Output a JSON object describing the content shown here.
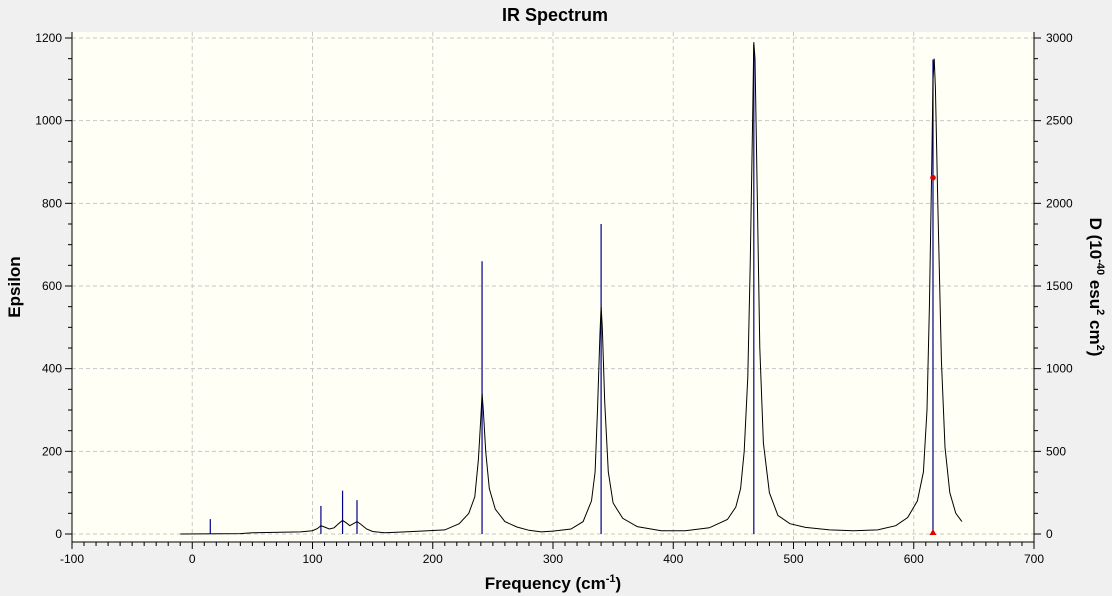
{
  "chart_data": {
    "type": "line",
    "title": "IR Spectrum",
    "xlabel": "Frequency (cm",
    "xlabel_sup": "-1",
    "xlabel_end": ")",
    "ylabel_left": "Epsilon",
    "ylabel_right_parts": [
      "D (10",
      "-40",
      " esu",
      "2",
      " cm",
      "2",
      ")"
    ],
    "xlim": [
      -100,
      700
    ],
    "ylim_left": [
      0,
      1200
    ],
    "ylim_right": [
      0,
      3000
    ],
    "x_ticks": [
      -100,
      0,
      100,
      200,
      300,
      400,
      500,
      600,
      700
    ],
    "y_ticks_left": [
      0,
      200,
      400,
      600,
      800,
      1000,
      1200
    ],
    "y_ticks_right": [
      0,
      500,
      1000,
      1500,
      2000,
      2500,
      3000
    ],
    "grid": true,
    "legend": "none",
    "colors": {
      "plot_bg": "#fffff5",
      "frame_bg": "#f0f0f0",
      "grid": "#c8c8c8",
      "curve": "#000000",
      "stick": "#00008b",
      "marker": "#e00000"
    },
    "sticks": [
      {
        "x": 15,
        "d": 90
      },
      {
        "x": 107,
        "d": 170
      },
      {
        "x": 125,
        "d": 262
      },
      {
        "x": 137,
        "d": 205
      },
      {
        "x": 241,
        "d": 1650
      },
      {
        "x": 340,
        "d": 1875
      },
      {
        "x": 467,
        "d": 2960
      },
      {
        "x": 616,
        "d": 2870
      }
    ],
    "curve": [
      [
        -10,
        0
      ],
      [
        40,
        1
      ],
      [
        50,
        3
      ],
      [
        90,
        5
      ],
      [
        100,
        8
      ],
      [
        104,
        13
      ],
      [
        107,
        20
      ],
      [
        110,
        17
      ],
      [
        114,
        12
      ],
      [
        118,
        15
      ],
      [
        122,
        26
      ],
      [
        125,
        33
      ],
      [
        128,
        27
      ],
      [
        131,
        20
      ],
      [
        134,
        25
      ],
      [
        137,
        30
      ],
      [
        140,
        24
      ],
      [
        145,
        12
      ],
      [
        150,
        6
      ],
      [
        160,
        3
      ],
      [
        170,
        4
      ],
      [
        190,
        7
      ],
      [
        210,
        10
      ],
      [
        222,
        25
      ],
      [
        230,
        50
      ],
      [
        235,
        90
      ],
      [
        238,
        180
      ],
      [
        240,
        280
      ],
      [
        241,
        340
      ],
      [
        242,
        300
      ],
      [
        244,
        200
      ],
      [
        247,
        110
      ],
      [
        252,
        60
      ],
      [
        260,
        30
      ],
      [
        270,
        17
      ],
      [
        280,
        9
      ],
      [
        290,
        5
      ],
      [
        300,
        7
      ],
      [
        315,
        12
      ],
      [
        325,
        30
      ],
      [
        332,
        80
      ],
      [
        335,
        150
      ],
      [
        337,
        300
      ],
      [
        339,
        480
      ],
      [
        340,
        550
      ],
      [
        341,
        500
      ],
      [
        343,
        320
      ],
      [
        346,
        150
      ],
      [
        350,
        75
      ],
      [
        358,
        38
      ],
      [
        370,
        18
      ],
      [
        390,
        8
      ],
      [
        410,
        8
      ],
      [
        430,
        15
      ],
      [
        445,
        35
      ],
      [
        452,
        65
      ],
      [
        456,
        110
      ],
      [
        459,
        200
      ],
      [
        462,
        380
      ],
      [
        464,
        650
      ],
      [
        466,
        1000
      ],
      [
        467,
        1190
      ],
      [
        468,
        1150
      ],
      [
        470,
        800
      ],
      [
        472,
        450
      ],
      [
        475,
        220
      ],
      [
        480,
        100
      ],
      [
        487,
        45
      ],
      [
        497,
        25
      ],
      [
        510,
        16
      ],
      [
        530,
        10
      ],
      [
        550,
        8
      ],
      [
        570,
        10
      ],
      [
        585,
        20
      ],
      [
        595,
        40
      ],
      [
        603,
        80
      ],
      [
        608,
        150
      ],
      [
        611,
        300
      ],
      [
        613,
        550
      ],
      [
        615,
        900
      ],
      [
        616,
        1100
      ],
      [
        617,
        1150
      ],
      [
        618,
        1080
      ],
      [
        620,
        800
      ],
      [
        623,
        420
      ],
      [
        626,
        210
      ],
      [
        630,
        100
      ],
      [
        635,
        50
      ],
      [
        640,
        30
      ]
    ],
    "markers": [
      {
        "x": 616,
        "y": 862,
        "shape": "circle"
      },
      {
        "x": 616,
        "y": 0,
        "shape": "triangle"
      }
    ]
  }
}
